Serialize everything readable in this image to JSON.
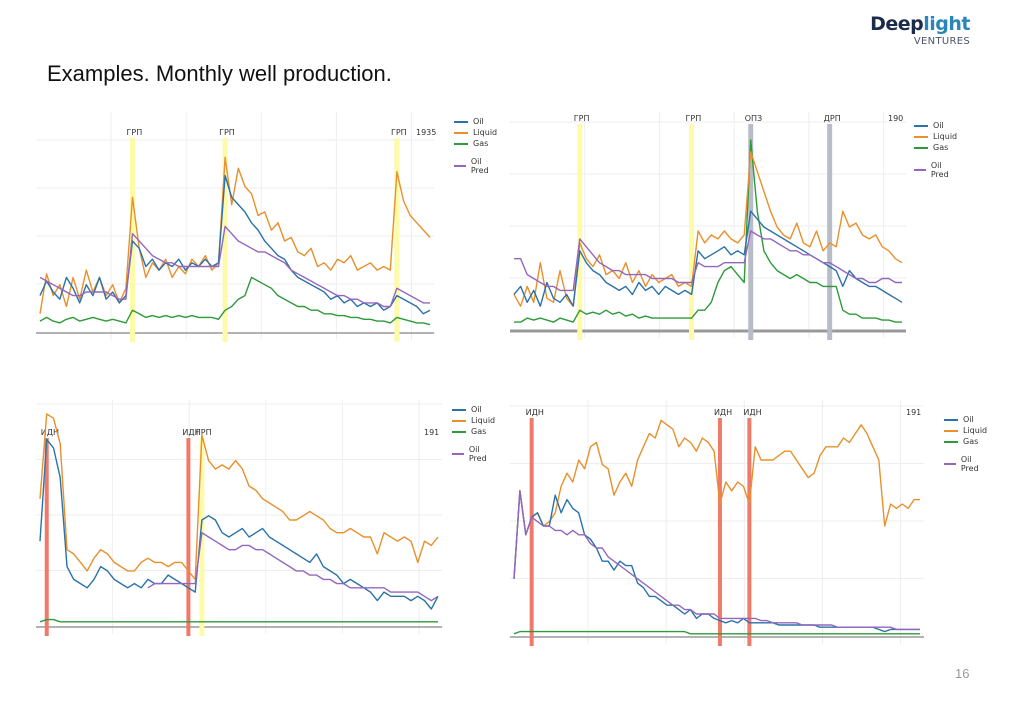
{
  "slide": {
    "title": "Examples. Monthly well production.",
    "page_number": "16",
    "logo": {
      "part1": "Deep",
      "part2": "light",
      "subtitle": "VENTURES"
    }
  },
  "colors": {
    "Oil": "#2a72a8",
    "Liquid": "#e8902c",
    "Gas": "#2e9a3a",
    "Oil Pred": "#9467bd",
    "ГРП": "#fdfaa8",
    "ИДН": "#f07a6a",
    "ОПЗ": "#b8bcc6",
    "ДРП": "#b8bcc6",
    "grid": "#eeeeee",
    "baseline": "#999999"
  },
  "chart_data": [
    {
      "type": "line",
      "title": "",
      "xlabel": "",
      "ylabel": "",
      "grid": true,
      "legend": "right",
      "ylim": [
        0,
        100
      ],
      "x_count": 60,
      "corner_label": "1935",
      "events": [
        {
          "label": "ГРП",
          "x": 14
        },
        {
          "label": "ГРП",
          "x": 28
        },
        {
          "label": "ГРП",
          "x": 54
        }
      ],
      "series": [
        {
          "name": "Oil",
          "values": [
            20,
            28,
            22,
            18,
            30,
            24,
            16,
            26,
            20,
            30,
            18,
            22,
            16,
            20,
            50,
            46,
            36,
            40,
            34,
            38,
            36,
            40,
            34,
            38,
            36,
            40,
            36,
            38,
            86,
            74,
            70,
            66,
            60,
            56,
            50,
            46,
            42,
            40,
            34,
            30,
            28,
            26,
            24,
            22,
            18,
            20,
            16,
            18,
            14,
            16,
            14,
            16,
            12,
            14,
            20,
            18,
            16,
            14,
            10,
            12
          ]
        },
        {
          "name": "Liquid",
          "values": [
            10,
            32,
            20,
            26,
            14,
            30,
            18,
            34,
            22,
            30,
            20,
            26,
            16,
            24,
            74,
            46,
            30,
            38,
            34,
            40,
            30,
            36,
            32,
            40,
            36,
            42,
            34,
            38,
            96,
            70,
            90,
            80,
            76,
            64,
            66,
            56,
            60,
            50,
            52,
            44,
            42,
            46,
            36,
            38,
            34,
            40,
            38,
            42,
            34,
            36,
            38,
            34,
            36,
            34,
            88,
            72,
            64,
            60,
            56,
            52
          ]
        },
        {
          "name": "Gas",
          "values": [
            6,
            8,
            6,
            5,
            7,
            8,
            6,
            7,
            8,
            7,
            6,
            7,
            6,
            5,
            12,
            10,
            8,
            9,
            8,
            9,
            8,
            9,
            8,
            9,
            8,
            8,
            8,
            7,
            12,
            14,
            18,
            20,
            30,
            28,
            26,
            24,
            20,
            18,
            16,
            14,
            14,
            12,
            12,
            10,
            10,
            9,
            9,
            8,
            8,
            7,
            7,
            6,
            6,
            5,
            8,
            7,
            6,
            5,
            5,
            4
          ]
        },
        {
          "name": "Oil Pred",
          "values": [
            30,
            28,
            26,
            24,
            22,
            20,
            20,
            22,
            22,
            22,
            22,
            20,
            18,
            18,
            54,
            50,
            46,
            42,
            40,
            38,
            38,
            36,
            36,
            36,
            36,
            36,
            36,
            36,
            58,
            54,
            50,
            48,
            46,
            44,
            44,
            42,
            40,
            38,
            34,
            32,
            30,
            28,
            26,
            24,
            22,
            20,
            20,
            18,
            18,
            16,
            16,
            16,
            14,
            14,
            24,
            22,
            20,
            18,
            16,
            16
          ]
        }
      ]
    },
    {
      "type": "line",
      "title": "",
      "xlabel": "",
      "ylabel": "",
      "grid": true,
      "legend": "right",
      "ylim": [
        0,
        100
      ],
      "x_count": 60,
      "corner_label": "190",
      "events": [
        {
          "label": "ГРП",
          "x": 10
        },
        {
          "label": "ГРП",
          "x": 27
        },
        {
          "label": "ОПЗ",
          "x": 36
        },
        {
          "label": "ДРП",
          "x": 48
        }
      ],
      "series": [
        {
          "name": "Oil",
          "values": [
            18,
            22,
            14,
            20,
            12,
            24,
            16,
            14,
            18,
            12,
            40,
            34,
            30,
            28,
            24,
            22,
            20,
            22,
            18,
            24,
            20,
            22,
            18,
            22,
            20,
            18,
            20,
            18,
            40,
            36,
            38,
            40,
            42,
            38,
            40,
            38,
            60,
            56,
            52,
            50,
            48,
            46,
            44,
            42,
            40,
            38,
            36,
            34,
            32,
            30,
            22,
            30,
            26,
            24,
            22,
            22,
            20,
            18,
            16,
            14
          ]
        },
        {
          "name": "Liquid",
          "values": [
            18,
            12,
            22,
            14,
            34,
            16,
            14,
            30,
            16,
            12,
            44,
            36,
            32,
            38,
            28,
            30,
            26,
            34,
            24,
            30,
            22,
            28,
            24,
            26,
            28,
            22,
            24,
            22,
            50,
            44,
            48,
            46,
            50,
            46,
            44,
            48,
            90,
            80,
            70,
            60,
            52,
            48,
            46,
            54,
            44,
            42,
            50,
            40,
            44,
            42,
            60,
            52,
            54,
            48,
            46,
            48,
            42,
            40,
            36,
            34
          ]
        },
        {
          "name": "Gas",
          "values": [
            4,
            4,
            6,
            5,
            6,
            5,
            4,
            6,
            5,
            4,
            10,
            8,
            9,
            8,
            10,
            8,
            9,
            7,
            8,
            6,
            7,
            6,
            6,
            6,
            6,
            6,
            6,
            6,
            10,
            10,
            14,
            24,
            30,
            32,
            28,
            24,
            96,
            60,
            40,
            34,
            30,
            28,
            26,
            28,
            26,
            24,
            24,
            22,
            22,
            22,
            10,
            8,
            8,
            6,
            6,
            6,
            5,
            5,
            4,
            4
          ]
        },
        {
          "name": "Oil Pred",
          "values": [
            36,
            36,
            28,
            26,
            24,
            22,
            22,
            20,
            20,
            20,
            46,
            42,
            38,
            34,
            32,
            30,
            30,
            28,
            28,
            28,
            28,
            26,
            26,
            26,
            26,
            24,
            24,
            24,
            34,
            32,
            32,
            32,
            34,
            34,
            34,
            34,
            50,
            48,
            46,
            46,
            44,
            42,
            40,
            40,
            38,
            38,
            36,
            34,
            34,
            32,
            30,
            28,
            26,
            26,
            24,
            24,
            26,
            26,
            24,
            24
          ]
        }
      ]
    },
    {
      "type": "line",
      "title": "",
      "xlabel": "",
      "ylabel": "",
      "grid": true,
      "legend": "right",
      "ylim": [
        0,
        100
      ],
      "x_count": 60,
      "corner_label": "191",
      "events": [
        {
          "label": "ИДН",
          "x": 1
        },
        {
          "label": "ИДН",
          "x": 22
        },
        {
          "label": "ГРП",
          "x": 24
        }
      ],
      "series": [
        {
          "name": "Oil",
          "values": [
            40,
            88,
            84,
            70,
            28,
            22,
            20,
            18,
            22,
            28,
            26,
            22,
            20,
            18,
            20,
            18,
            22,
            20,
            20,
            24,
            22,
            20,
            18,
            16,
            50,
            52,
            50,
            44,
            42,
            44,
            46,
            42,
            44,
            46,
            42,
            40,
            38,
            36,
            34,
            32,
            30,
            34,
            28,
            26,
            24,
            20,
            22,
            20,
            18,
            16,
            12,
            16,
            14,
            14,
            14,
            12,
            14,
            12,
            8,
            14
          ]
        },
        {
          "name": "Liquid",
          "values": [
            60,
            100,
            98,
            86,
            36,
            34,
            30,
            26,
            32,
            36,
            34,
            30,
            28,
            26,
            26,
            30,
            32,
            30,
            30,
            28,
            30,
            30,
            26,
            22,
            90,
            78,
            74,
            76,
            74,
            78,
            74,
            66,
            64,
            60,
            58,
            56,
            54,
            50,
            50,
            52,
            54,
            52,
            50,
            46,
            44,
            44,
            46,
            44,
            42,
            42,
            34,
            44,
            42,
            40,
            42,
            40,
            30,
            40,
            38,
            42
          ]
        },
        {
          "name": "Gas",
          "values": [
            2,
            3,
            3,
            2,
            2,
            2,
            2,
            2,
            2,
            2,
            2,
            2,
            2,
            2,
            2,
            2,
            2,
            2,
            2,
            2,
            2,
            2,
            2,
            2,
            2,
            2,
            2,
            2,
            2,
            2,
            2,
            2,
            2,
            2,
            2,
            2,
            2,
            2,
            2,
            2,
            2,
            2,
            2,
            2,
            2,
            2,
            2,
            2,
            2,
            2,
            2,
            2,
            2,
            2,
            2,
            2,
            2,
            2,
            2,
            2
          ]
        },
        {
          "name": "Oil Pred",
          "values": [
            null,
            null,
            null,
            null,
            null,
            null,
            null,
            null,
            null,
            null,
            null,
            null,
            null,
            null,
            null,
            null,
            18,
            20,
            20,
            20,
            20,
            20,
            20,
            20,
            44,
            42,
            40,
            38,
            36,
            36,
            38,
            38,
            36,
            36,
            34,
            32,
            30,
            28,
            26,
            26,
            24,
            24,
            22,
            22,
            20,
            20,
            18,
            18,
            18,
            18,
            18,
            18,
            16,
            16,
            16,
            16,
            16,
            14,
            12,
            14
          ]
        }
      ]
    },
    {
      "type": "line",
      "title": "",
      "xlabel": "",
      "ylabel": "",
      "grid": true,
      "legend": "right",
      "ylim": [
        0,
        100
      ],
      "x_count": 70,
      "corner_label": "191",
      "events": [
        {
          "label": "ИДН",
          "x": 3
        },
        {
          "label": "ИДН",
          "x": 35
        },
        {
          "label": "ИДН",
          "x": 40
        }
      ],
      "series": [
        {
          "name": "Oil",
          "values": [
            26,
            66,
            46,
            54,
            56,
            50,
            50,
            64,
            56,
            62,
            58,
            56,
            46,
            44,
            40,
            34,
            34,
            30,
            34,
            32,
            32,
            24,
            22,
            18,
            18,
            16,
            14,
            14,
            12,
            10,
            12,
            8,
            10,
            10,
            8,
            7,
            6,
            7,
            6,
            8,
            6,
            6,
            6,
            6,
            6,
            5,
            5,
            5,
            5,
            5,
            5,
            5,
            4,
            4,
            4,
            4,
            4,
            4,
            4,
            4,
            4,
            4,
            3,
            2,
            3,
            3,
            3,
            3,
            3,
            3
          ]
        },
        {
          "name": "Liquid",
          "values": [
            26,
            66,
            46,
            54,
            56,
            50,
            52,
            56,
            68,
            74,
            70,
            80,
            76,
            86,
            88,
            78,
            76,
            64,
            70,
            74,
            68,
            80,
            86,
            92,
            90,
            98,
            96,
            94,
            86,
            90,
            88,
            84,
            90,
            88,
            84,
            60,
            70,
            66,
            70,
            68,
            60,
            86,
            80,
            80,
            80,
            82,
            84,
            84,
            80,
            76,
            72,
            74,
            82,
            86,
            86,
            86,
            90,
            88,
            92,
            96,
            92,
            86,
            80,
            50,
            60,
            58,
            60,
            58,
            62,
            62
          ]
        },
        {
          "name": "Gas",
          "values": [
            1,
            2,
            2,
            2,
            2,
            2,
            2,
            2,
            2,
            2,
            2,
            2,
            2,
            2,
            2,
            2,
            2,
            2,
            2,
            2,
            2,
            2,
            2,
            2,
            2,
            2,
            2,
            2,
            2,
            2,
            1,
            1,
            1,
            1,
            1,
            1,
            1,
            1,
            1,
            1,
            1,
            1,
            1,
            1,
            1,
            1,
            1,
            1,
            1,
            1,
            1,
            1,
            1,
            1,
            1,
            1,
            1,
            1,
            1,
            1,
            1,
            1,
            1,
            1,
            1,
            1,
            1,
            1,
            1,
            1
          ]
        },
        {
          "name": "Oil Pred",
          "values": [
            26,
            66,
            46,
            54,
            52,
            50,
            50,
            48,
            48,
            46,
            48,
            46,
            46,
            42,
            40,
            40,
            36,
            34,
            32,
            30,
            28,
            26,
            24,
            22,
            20,
            18,
            16,
            14,
            14,
            12,
            12,
            10,
            10,
            10,
            10,
            8,
            8,
            8,
            8,
            8,
            8,
            8,
            7,
            7,
            6,
            6,
            6,
            6,
            6,
            5,
            5,
            5,
            5,
            5,
            5,
            4,
            4,
            4,
            4,
            4,
            4,
            4,
            4,
            4,
            4,
            3,
            3,
            3,
            3,
            3
          ]
        }
      ]
    }
  ]
}
